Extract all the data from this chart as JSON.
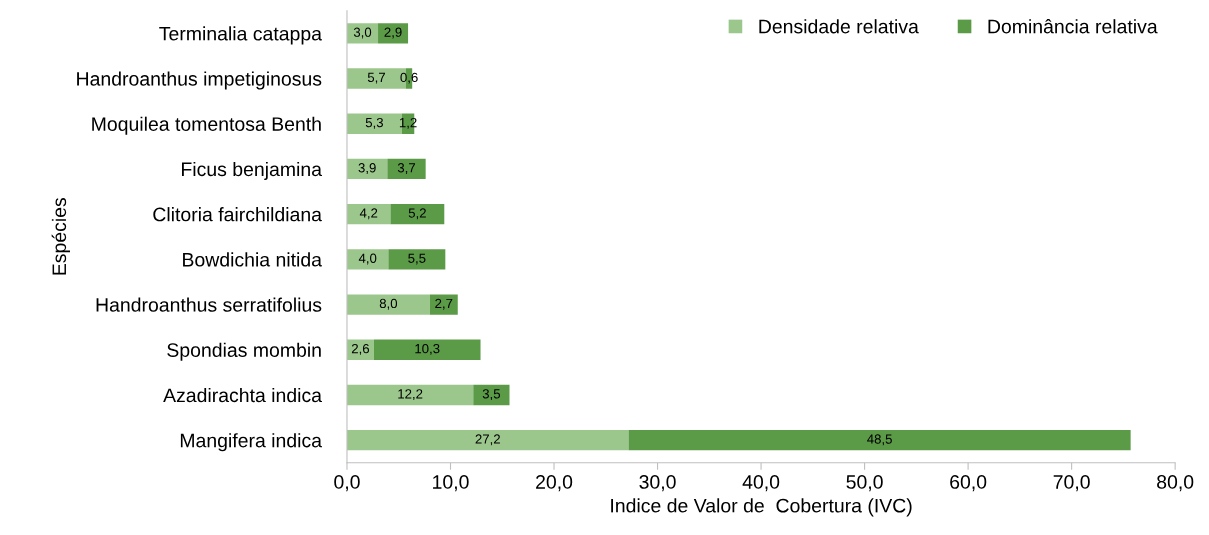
{
  "chart_data": {
    "type": "bar",
    "orientation": "horizontal",
    "stacked": true,
    "ylabel": "Espécies",
    "xlabel": "Indice de Valor de  Cobertura (IVC)",
    "categories": [
      "Terminalia catappa",
      "Handroanthus impetiginosus",
      "Moquilea tomentosa Benth",
      "Ficus benjamina",
      "Clitoria fairchildiana",
      "Bowdichia nitida",
      "Handroanthus serratifolius",
      "Spondias mombin",
      "Azadirachta indica",
      "Mangifera indica"
    ],
    "series": [
      {
        "name": "Densidade relativa",
        "color": "#9cc78c",
        "values": [
          3.0,
          5.7,
          5.3,
          3.9,
          4.2,
          4.0,
          8.0,
          2.6,
          12.2,
          27.2
        ],
        "value_labels": [
          "3,0",
          "5,7",
          "5,3",
          "3,9",
          "4,2",
          "4,0",
          "8,0",
          "2,6",
          "12,2",
          "27,2"
        ]
      },
      {
        "name": "Dominância relativa",
        "color": "#5b9a47",
        "values": [
          2.9,
          0.6,
          1.2,
          3.7,
          5.2,
          5.5,
          2.7,
          10.3,
          3.5,
          48.5
        ],
        "value_labels": [
          "2,9",
          "0,6",
          "1,2",
          "3,7",
          "5,2",
          "5,5",
          "2,7",
          "10,3",
          "3,5",
          "48,5"
        ]
      }
    ],
    "xlim": [
      0,
      80
    ],
    "xticks": [
      {
        "value": 0,
        "label": "0,0"
      },
      {
        "value": 10,
        "label": "10,0"
      },
      {
        "value": 20,
        "label": "20,0"
      },
      {
        "value": 30,
        "label": "30,0"
      },
      {
        "value": 40,
        "label": "40,0"
      },
      {
        "value": 50,
        "label": "50,0"
      },
      {
        "value": 60,
        "label": "60,0"
      },
      {
        "value": 70,
        "label": "70,0"
      },
      {
        "value": 80,
        "label": "80,0"
      }
    ],
    "legend": "top right",
    "grid": false
  }
}
